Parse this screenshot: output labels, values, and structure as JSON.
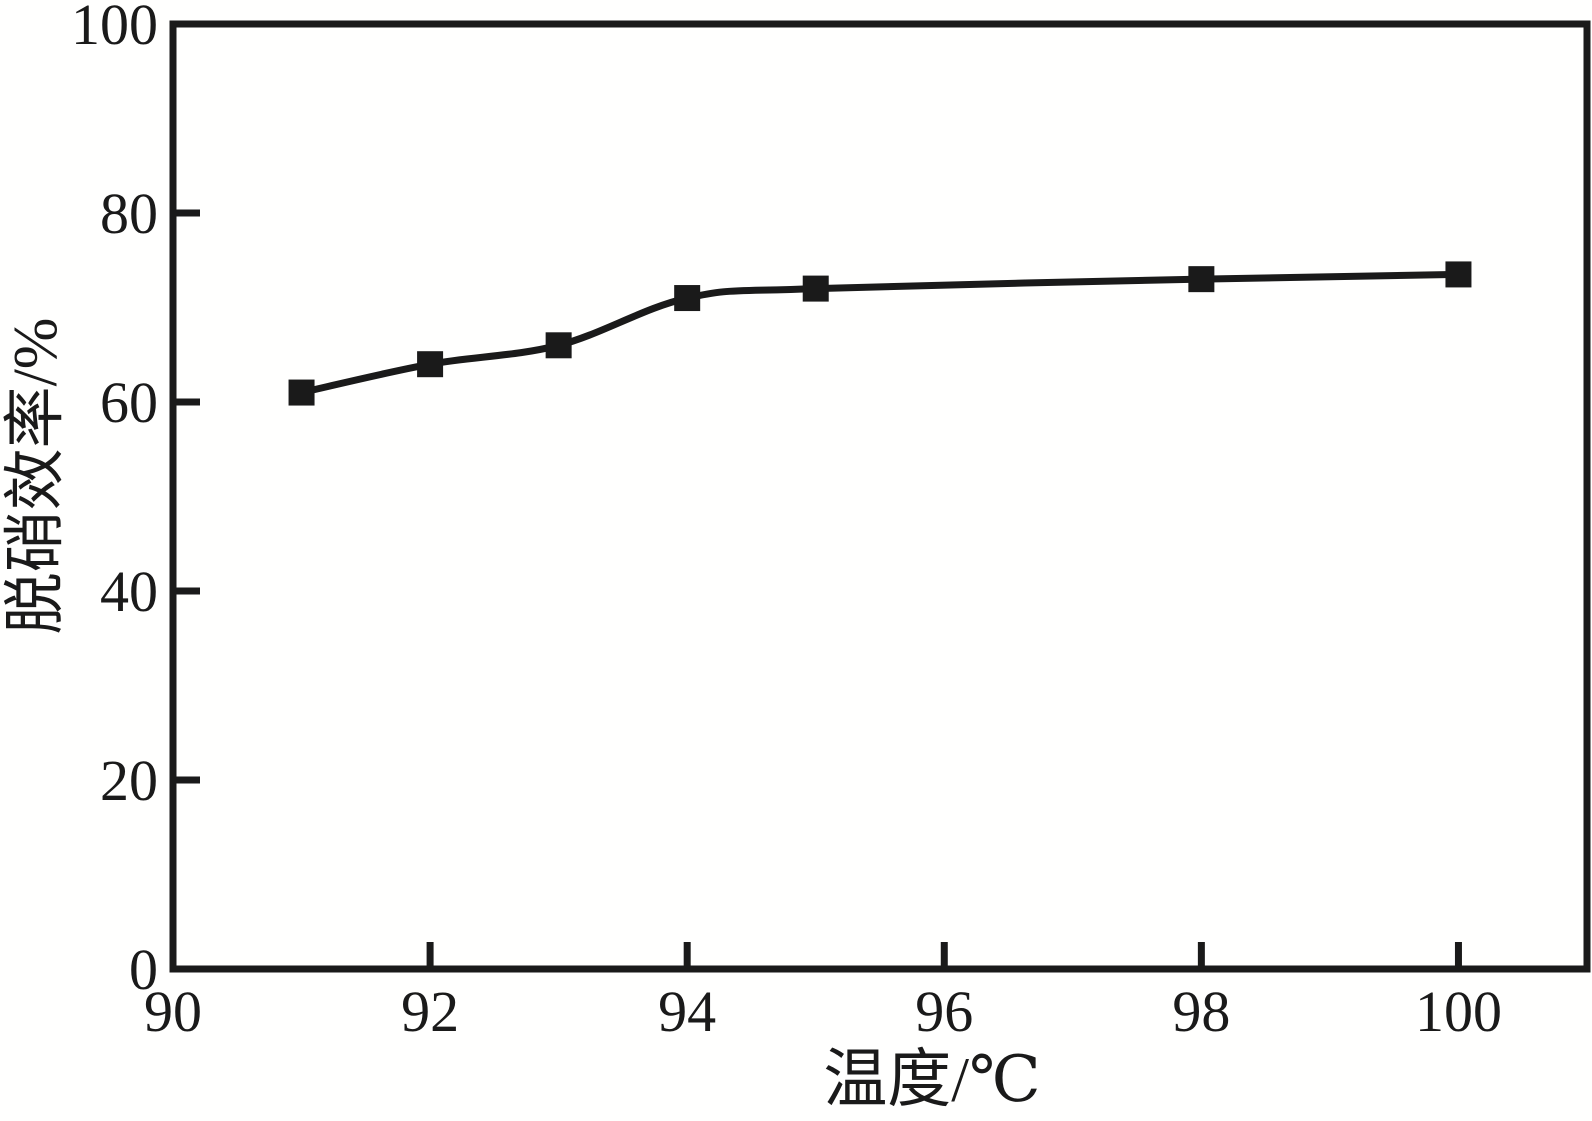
{
  "figure": {
    "background": "#fffffe",
    "ink_color": "#1a1a1a"
  },
  "chart_data": {
    "type": "line",
    "title": "",
    "xlabel": "温度/℃",
    "ylabel": "脱硝效率/%",
    "x": [
      91,
      92,
      93,
      94,
      95,
      98,
      100
    ],
    "series": [
      {
        "name": "脱硝效率",
        "values": [
          61,
          64,
          66,
          71,
          72,
          73,
          73.5
        ]
      }
    ],
    "xlim": [
      90,
      101
    ],
    "ylim": [
      0,
      100
    ],
    "x_ticks": [
      90,
      92,
      94,
      96,
      98,
      100
    ],
    "y_ticks": [
      0,
      20,
      40,
      60,
      80,
      100
    ],
    "grid": false,
    "legend": "none",
    "line_color": "#1a1a1a",
    "marker": "filled-square",
    "smooth": true
  }
}
